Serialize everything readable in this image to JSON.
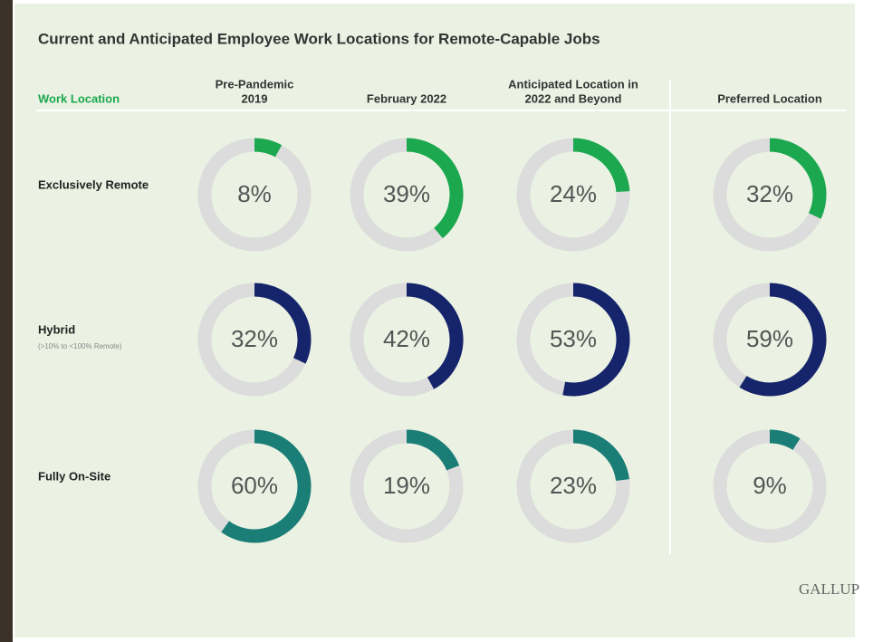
{
  "chart_data": {
    "type": "donut-grid",
    "title": "Current and Anticipated Employee Work Locations for Remote-Capable Jobs",
    "row_header": "Work Location",
    "columns": [
      [
        "Pre-Pandemic",
        "2019"
      ],
      [
        "February 2022"
      ],
      [
        "Anticipated Location in",
        "2022 and Beyond"
      ],
      [
        "Preferred Location"
      ]
    ],
    "series": [
      {
        "name": "Exclusively Remote",
        "color": "#1ba84e",
        "values": [
          8,
          39,
          24,
          32
        ],
        "value_labels": [
          "8%",
          "39%",
          "24%",
          "32%"
        ]
      },
      {
        "name": "Hybrid",
        "note": "(>10% to <100% Remote)",
        "color": "#16256b",
        "values": [
          32,
          42,
          53,
          59
        ],
        "value_labels": [
          "32%",
          "42%",
          "53%",
          "59%"
        ]
      },
      {
        "name": "Fully On-Site",
        "color": "#1a7e76",
        "values": [
          60,
          19,
          23,
          9
        ],
        "value_labels": [
          "60%",
          "19%",
          "23%",
          "9%"
        ]
      }
    ],
    "source": "GALLUP"
  }
}
